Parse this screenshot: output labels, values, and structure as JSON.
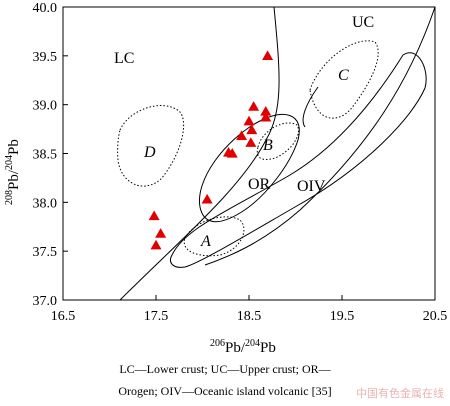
{
  "chart_data": {
    "type": "scatter",
    "xlabel_sup": "206",
    "xlabel_main": "Pb/",
    "xlabel_sup2": "204",
    "xlabel_end": "Pb",
    "ylabel_sup": "208",
    "ylabel_main": "Pb/",
    "ylabel_sup2": "204",
    "ylabel_end": "Pb",
    "xlim": [
      16.5,
      20.5
    ],
    "ylim": [
      37.0,
      40.0
    ],
    "xticks": [
      {
        "value": 16.5,
        "label": "16.5"
      },
      {
        "value": 17.5,
        "label": "17.5"
      },
      {
        "value": 18.5,
        "label": "18.5"
      },
      {
        "value": 19.5,
        "label": "19.5"
      },
      {
        "value": 20.5,
        "label": "20.5"
      }
    ],
    "yticks": [
      {
        "value": 37.0,
        "label": "37.0"
      },
      {
        "value": 37.5,
        "label": "37.5"
      },
      {
        "value": 38.0,
        "label": "38.0"
      },
      {
        "value": 38.5,
        "label": "38.5"
      },
      {
        "value": 39.0,
        "label": "39.0"
      },
      {
        "value": 39.5,
        "label": "39.5"
      },
      {
        "value": 40.0,
        "label": "40.0"
      }
    ],
    "marker": {
      "shape": "triangle",
      "color": "#e00000"
    },
    "points": [
      {
        "x": 18.7,
        "y": 39.5
      },
      {
        "x": 18.55,
        "y": 38.98
      },
      {
        "x": 18.68,
        "y": 38.93
      },
      {
        "x": 18.68,
        "y": 38.87
      },
      {
        "x": 18.5,
        "y": 38.83
      },
      {
        "x": 18.53,
        "y": 38.74
      },
      {
        "x": 18.42,
        "y": 38.68
      },
      {
        "x": 18.52,
        "y": 38.61
      },
      {
        "x": 18.28,
        "y": 38.51
      },
      {
        "x": 18.32,
        "y": 38.5
      },
      {
        "x": 18.05,
        "y": 38.03
      },
      {
        "x": 17.48,
        "y": 37.86
      },
      {
        "x": 17.55,
        "y": 37.68
      },
      {
        "x": 17.5,
        "y": 37.56
      }
    ],
    "region_labels": {
      "LC": "LC",
      "UC": "UC",
      "OR": "OR",
      "OIV": "OIV",
      "A": "A",
      "B": "B",
      "C": "C",
      "D": "D"
    }
  },
  "caption": {
    "line1": "LC—Lower crust; UC—Upper crust; OR—",
    "line2": "Orogen; OIV—Oceanic island volcanic [35]"
  },
  "watermark": "中国有色金属在线"
}
